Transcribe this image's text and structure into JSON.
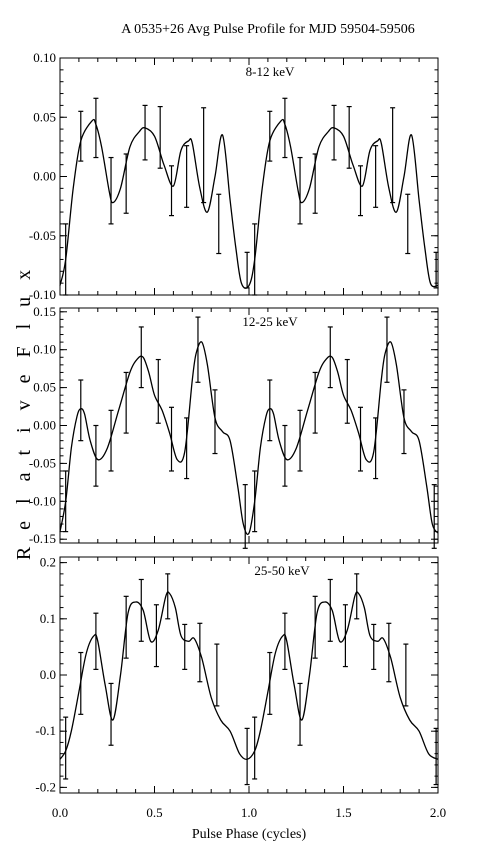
{
  "chart_data": {
    "type": "line",
    "title": "A 0535+26  Avg Pulse Profile for MJD 59504-59506",
    "xlabel": "Pulse Phase (cycles)",
    "ylabel": "R e l a t i v e  F l u x",
    "xlim": [
      0.0,
      2.0
    ],
    "xticks": [
      "0.0",
      "0.5",
      "1.0",
      "1.5",
      "2.0"
    ],
    "panels": [
      {
        "label": "8-12 keV",
        "ylim": [
          -0.1,
          0.1
        ],
        "yticks": [
          "-0.10",
          "-0.05",
          "0.00",
          "0.05",
          "0.10"
        ],
        "ytick_values": [
          -0.1,
          -0.05,
          0.0,
          0.05,
          0.1
        ],
        "points": [
          {
            "x": 0.03,
            "y": -0.07,
            "err": 0.03
          },
          {
            "x": 0.11,
            "y": 0.034,
            "err": 0.021
          },
          {
            "x": 0.19,
            "y": 0.041,
            "err": 0.025
          },
          {
            "x": 0.27,
            "y": -0.012,
            "err": 0.028
          },
          {
            "x": 0.35,
            "y": -0.006,
            "err": 0.025
          },
          {
            "x": 0.45,
            "y": 0.037,
            "err": 0.023
          },
          {
            "x": 0.53,
            "y": 0.033,
            "err": 0.026
          },
          {
            "x": 0.59,
            "y": -0.012,
            "err": 0.021
          },
          {
            "x": 0.67,
            "y": 0.0,
            "err": 0.026
          },
          {
            "x": 0.76,
            "y": 0.018,
            "err": 0.04
          },
          {
            "x": 0.84,
            "y": -0.04,
            "err": 0.025
          },
          {
            "x": 0.99,
            "y": -0.079,
            "err": 0.015
          },
          {
            "x": 1.03,
            "y": -0.07,
            "err": 0.03
          },
          {
            "x": 1.11,
            "y": 0.034,
            "err": 0.021
          },
          {
            "x": 1.19,
            "y": 0.041,
            "err": 0.025
          },
          {
            "x": 1.27,
            "y": -0.012,
            "err": 0.028
          },
          {
            "x": 1.35,
            "y": -0.006,
            "err": 0.025
          },
          {
            "x": 1.45,
            "y": 0.037,
            "err": 0.023
          },
          {
            "x": 1.53,
            "y": 0.033,
            "err": 0.026
          },
          {
            "x": 1.59,
            "y": -0.012,
            "err": 0.021
          },
          {
            "x": 1.67,
            "y": 0.0,
            "err": 0.026
          },
          {
            "x": 1.76,
            "y": 0.018,
            "err": 0.04
          },
          {
            "x": 1.84,
            "y": -0.04,
            "err": 0.025
          },
          {
            "x": 1.99,
            "y": -0.079,
            "err": 0.015
          }
        ],
        "curve": {
          "x": [
            0.0,
            0.03,
            0.07,
            0.11,
            0.17,
            0.19,
            0.22,
            0.26,
            0.28,
            0.32,
            0.37,
            0.42,
            0.45,
            0.5,
            0.55,
            0.6,
            0.64,
            0.68,
            0.7,
            0.74,
            0.78,
            0.82,
            0.86,
            0.9,
            0.93,
            0.96,
            1.0,
            1.03,
            1.07,
            1.11,
            1.17,
            1.19,
            1.22,
            1.26,
            1.28,
            1.32,
            1.37,
            1.42,
            1.45,
            1.5,
            1.55,
            1.6,
            1.64,
            1.68,
            1.7,
            1.74,
            1.78,
            1.82,
            1.86,
            1.9,
            1.93,
            1.96,
            2.0
          ],
          "y": [
            -0.092,
            -0.07,
            -0.01,
            0.03,
            0.047,
            0.044,
            0.025,
            -0.012,
            -0.022,
            -0.01,
            0.025,
            0.038,
            0.041,
            0.034,
            0.01,
            -0.008,
            0.022,
            0.03,
            0.028,
            -0.01,
            -0.03,
            0.0,
            0.035,
            -0.02,
            -0.06,
            -0.09,
            -0.092,
            -0.07,
            -0.01,
            0.03,
            0.047,
            0.044,
            0.025,
            -0.012,
            -0.022,
            -0.01,
            0.025,
            0.038,
            0.041,
            0.034,
            0.01,
            -0.008,
            0.022,
            0.03,
            0.028,
            -0.01,
            -0.03,
            0.0,
            0.035,
            -0.02,
            -0.06,
            -0.09,
            -0.092
          ]
        }
      },
      {
        "label": "12-25 keV",
        "ylim": [
          -0.155,
          0.155
        ],
        "yticks": [
          "-0.15",
          "-0.10",
          "-0.05",
          "0.00",
          "0.05",
          "0.10",
          "0.15"
        ],
        "ytick_values": [
          -0.15,
          -0.1,
          -0.05,
          0.0,
          0.05,
          0.1,
          0.15
        ],
        "points": [
          {
            "x": 0.03,
            "y": -0.1,
            "err": 0.04
          },
          {
            "x": 0.11,
            "y": 0.02,
            "err": 0.04
          },
          {
            "x": 0.19,
            "y": -0.04,
            "err": 0.04
          },
          {
            "x": 0.27,
            "y": -0.02,
            "err": 0.04
          },
          {
            "x": 0.35,
            "y": 0.03,
            "err": 0.04
          },
          {
            "x": 0.43,
            "y": 0.09,
            "err": 0.04
          },
          {
            "x": 0.52,
            "y": 0.045,
            "err": 0.042
          },
          {
            "x": 0.59,
            "y": -0.018,
            "err": 0.042
          },
          {
            "x": 0.67,
            "y": -0.03,
            "err": 0.04
          },
          {
            "x": 0.73,
            "y": 0.1,
            "err": 0.043
          },
          {
            "x": 0.82,
            "y": 0.005,
            "err": 0.042
          },
          {
            "x": 0.98,
            "y": -0.12,
            "err": 0.042
          },
          {
            "x": 1.03,
            "y": -0.1,
            "err": 0.04
          },
          {
            "x": 1.11,
            "y": 0.02,
            "err": 0.04
          },
          {
            "x": 1.19,
            "y": -0.04,
            "err": 0.04
          },
          {
            "x": 1.27,
            "y": -0.02,
            "err": 0.04
          },
          {
            "x": 1.35,
            "y": 0.03,
            "err": 0.04
          },
          {
            "x": 1.43,
            "y": 0.09,
            "err": 0.04
          },
          {
            "x": 1.52,
            "y": 0.045,
            "err": 0.042
          },
          {
            "x": 1.59,
            "y": -0.018,
            "err": 0.042
          },
          {
            "x": 1.67,
            "y": -0.03,
            "err": 0.04
          },
          {
            "x": 1.73,
            "y": 0.1,
            "err": 0.043
          },
          {
            "x": 1.82,
            "y": 0.005,
            "err": 0.042
          },
          {
            "x": 1.98,
            "y": -0.12,
            "err": 0.042
          }
        ],
        "curve": {
          "x": [
            0.0,
            0.03,
            0.06,
            0.09,
            0.11,
            0.13,
            0.16,
            0.2,
            0.25,
            0.31,
            0.37,
            0.41,
            0.44,
            0.47,
            0.5,
            0.54,
            0.58,
            0.62,
            0.66,
            0.7,
            0.72,
            0.75,
            0.78,
            0.82,
            0.86,
            0.9,
            0.94,
            0.97,
            1.0,
            1.03,
            1.06,
            1.09,
            1.11,
            1.13,
            1.16,
            1.2,
            1.25,
            1.31,
            1.37,
            1.41,
            1.44,
            1.47,
            1.5,
            1.54,
            1.58,
            1.62,
            1.66,
            1.7,
            1.72,
            1.75,
            1.78,
            1.82,
            1.86,
            1.9,
            1.94,
            1.97,
            2.0
          ],
          "y": [
            -0.14,
            -0.1,
            -0.03,
            0.012,
            0.022,
            0.015,
            -0.02,
            -0.045,
            -0.03,
            0.02,
            0.07,
            0.088,
            0.09,
            0.07,
            0.04,
            0.02,
            -0.01,
            -0.045,
            -0.035,
            0.06,
            0.095,
            0.11,
            0.08,
            0.01,
            -0.008,
            -0.02,
            -0.08,
            -0.13,
            -0.142,
            -0.1,
            -0.03,
            0.012,
            0.022,
            0.015,
            -0.02,
            -0.045,
            -0.03,
            0.02,
            0.07,
            0.088,
            0.09,
            0.07,
            0.04,
            0.02,
            -0.01,
            -0.045,
            -0.035,
            0.06,
            0.095,
            0.11,
            0.08,
            0.01,
            -0.008,
            -0.02,
            -0.08,
            -0.13,
            -0.142
          ]
        }
      },
      {
        "label": "25-50 keV",
        "ylim": [
          -0.21,
          0.21
        ],
        "yticks": [
          "-0.2",
          "-0.1",
          "0.0",
          "0.1",
          "0.2"
        ],
        "ytick_values": [
          -0.2,
          -0.1,
          0.0,
          0.1,
          0.2
        ],
        "points": [
          {
            "x": 0.03,
            "y": -0.13,
            "err": 0.055
          },
          {
            "x": 0.11,
            "y": -0.015,
            "err": 0.055
          },
          {
            "x": 0.19,
            "y": 0.06,
            "err": 0.05
          },
          {
            "x": 0.27,
            "y": -0.07,
            "err": 0.055
          },
          {
            "x": 0.35,
            "y": 0.085,
            "err": 0.055
          },
          {
            "x": 0.43,
            "y": 0.115,
            "err": 0.055
          },
          {
            "x": 0.51,
            "y": 0.07,
            "err": 0.055
          },
          {
            "x": 0.57,
            "y": 0.14,
            "err": 0.04
          },
          {
            "x": 0.66,
            "y": 0.05,
            "err": 0.04
          },
          {
            "x": 0.74,
            "y": 0.04,
            "err": 0.052
          },
          {
            "x": 0.83,
            "y": 0.0,
            "err": 0.055
          },
          {
            "x": 0.99,
            "y": -0.145,
            "err": 0.05
          },
          {
            "x": 1.03,
            "y": -0.13,
            "err": 0.055
          },
          {
            "x": 1.11,
            "y": -0.015,
            "err": 0.055
          },
          {
            "x": 1.19,
            "y": 0.06,
            "err": 0.05
          },
          {
            "x": 1.27,
            "y": -0.07,
            "err": 0.055
          },
          {
            "x": 1.35,
            "y": 0.085,
            "err": 0.055
          },
          {
            "x": 1.43,
            "y": 0.115,
            "err": 0.055
          },
          {
            "x": 1.51,
            "y": 0.07,
            "err": 0.055
          },
          {
            "x": 1.57,
            "y": 0.14,
            "err": 0.04
          },
          {
            "x": 1.66,
            "y": 0.05,
            "err": 0.04
          },
          {
            "x": 1.74,
            "y": 0.04,
            "err": 0.052
          },
          {
            "x": 1.83,
            "y": 0.0,
            "err": 0.055
          },
          {
            "x": 1.99,
            "y": -0.145,
            "err": 0.05
          }
        ],
        "curve": {
          "x": [
            0.0,
            0.03,
            0.06,
            0.1,
            0.14,
            0.18,
            0.2,
            0.24,
            0.28,
            0.32,
            0.36,
            0.4,
            0.44,
            0.48,
            0.52,
            0.56,
            0.58,
            0.61,
            0.64,
            0.68,
            0.71,
            0.75,
            0.8,
            0.85,
            0.9,
            0.95,
            0.99,
            1.03,
            1.06,
            1.1,
            1.14,
            1.18,
            1.2,
            1.24,
            1.28,
            1.32,
            1.36,
            1.4,
            1.44,
            1.48,
            1.52,
            1.56,
            1.58,
            1.61,
            1.64,
            1.68,
            1.71,
            1.75,
            1.8,
            1.85,
            1.9,
            1.95,
            2.0
          ],
          "y": [
            -0.15,
            -0.135,
            -0.1,
            -0.03,
            0.04,
            0.07,
            0.06,
            -0.02,
            -0.08,
            0.0,
            0.11,
            0.13,
            0.115,
            0.06,
            0.08,
            0.14,
            0.145,
            0.12,
            0.07,
            0.06,
            0.065,
            0.03,
            -0.04,
            -0.08,
            -0.1,
            -0.14,
            -0.15,
            -0.135,
            -0.1,
            -0.03,
            0.04,
            0.07,
            0.06,
            -0.02,
            -0.08,
            0.0,
            0.11,
            0.13,
            0.115,
            0.06,
            0.08,
            0.14,
            0.145,
            0.12,
            0.07,
            0.06,
            0.065,
            0.03,
            -0.04,
            -0.08,
            -0.1,
            -0.14,
            -0.15
          ]
        }
      }
    ]
  }
}
